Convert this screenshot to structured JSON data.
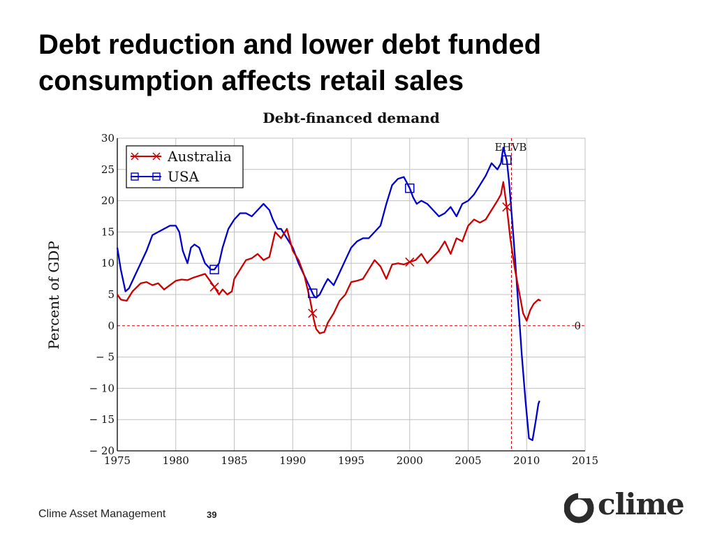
{
  "slide": {
    "title_lines": [
      "Debt reduction and lower debt funded",
      "consumption affects retail sales"
    ],
    "footer": "Clime Asset Management",
    "page_number": "39",
    "logo_text": "clime"
  },
  "colors": {
    "australia": "#cc0000",
    "usa": "#0000cc",
    "zero_line": "#cc0000",
    "grid": "#c0c0c0"
  },
  "chart_data": {
    "type": "line",
    "title": "Debt-financed demand",
    "xlabel": "",
    "ylabel": "Percent of GDP",
    "xlim": [
      1975,
      2015
    ],
    "ylim": [
      -20,
      30
    ],
    "x_ticks": [
      1975,
      1980,
      1985,
      1990,
      1995,
      2000,
      2005,
      2010,
      2015
    ],
    "x_tick_labels": [
      "1975",
      "1980",
      "1985",
      "1990",
      "1995",
      "2000",
      "2005",
      "2010",
      "2015"
    ],
    "y_ticks": [
      -20,
      -15,
      -10,
      -5,
      0,
      5,
      10,
      15,
      20,
      25,
      30
    ],
    "y_tick_labels": [
      "− 20",
      "− 15",
      "− 10",
      "− 5",
      "0",
      "5",
      "10",
      "15",
      "20",
      "25",
      "30"
    ],
    "grid": true,
    "legend": "top-left",
    "annotations": [
      {
        "text": "EHVB",
        "x": 2008.7
      },
      {
        "text": "0",
        "y": 0
      }
    ],
    "series": [
      {
        "name": "Australia",
        "marker": "x",
        "marker_x": [
          1983.3,
          1991.7,
          2000.0,
          2008.3
        ],
        "x": [
          1975,
          1975.3,
          1975.8,
          1976.3,
          1977,
          1977.5,
          1978,
          1978.5,
          1979,
          1979.5,
          1980,
          1980.5,
          1981,
          1981.5,
          1982,
          1982.5,
          1983,
          1983.3,
          1983.7,
          1984,
          1984.4,
          1984.8,
          1985,
          1985.5,
          1986,
          1986.5,
          1987,
          1987.5,
          1988,
          1988.5,
          1989,
          1989.5,
          1990,
          1990.5,
          1991,
          1991.5,
          1991.8,
          1992,
          1992.3,
          1992.7,
          1993,
          1993.5,
          1994,
          1994.5,
          1995,
          1995.5,
          1996,
          1996.5,
          1997,
          1997.5,
          1998,
          1998.5,
          1999,
          1999.5,
          2000,
          2000.5,
          2001,
          2001.5,
          2002,
          2002.5,
          2003,
          2003.5,
          2004,
          2004.5,
          2005,
          2005.5,
          2006,
          2006.5,
          2007,
          2007.5,
          2007.8,
          2008,
          2008.3,
          2008.6,
          2009,
          2009.4,
          2009.7,
          2010,
          2010.3,
          2010.6,
          2011,
          2011.2
        ],
        "values": [
          5.0,
          4.2,
          4.0,
          5.5,
          6.8,
          7.0,
          6.5,
          6.8,
          5.8,
          6.5,
          7.2,
          7.4,
          7.3,
          7.7,
          8.0,
          8.3,
          7.0,
          6.2,
          5.0,
          5.8,
          5.0,
          5.5,
          7.5,
          9.0,
          10.5,
          10.8,
          11.5,
          10.5,
          11.0,
          15.0,
          14.0,
          15.5,
          12.0,
          10.5,
          8.0,
          4.0,
          1.0,
          -0.5,
          -1.2,
          -1.0,
          0.5,
          2.0,
          4.0,
          5.0,
          7.0,
          7.2,
          7.5,
          9.0,
          10.5,
          9.5,
          7.5,
          9.8,
          10.0,
          9.8,
          10.2,
          10.5,
          11.5,
          10.0,
          11.0,
          12.0,
          13.5,
          11.5,
          14.0,
          13.5,
          16.0,
          17.0,
          16.5,
          17.0,
          18.5,
          20.0,
          21.0,
          23.0,
          19.0,
          14.0,
          9.0,
          5.0,
          2.0,
          0.8,
          2.5,
          3.5,
          4.2,
          4.0
        ]
      },
      {
        "name": "USA",
        "marker": "square",
        "marker_x": [
          1983.3,
          1991.7,
          2000.0,
          2008.3
        ],
        "x": [
          1975,
          1975.3,
          1975.7,
          1976,
          1976.5,
          1977,
          1977.5,
          1978,
          1978.5,
          1979,
          1979.5,
          1980,
          1980.3,
          1980.6,
          1981,
          1981.3,
          1981.6,
          1982,
          1982.5,
          1983,
          1983.3,
          1983.7,
          1984,
          1984.5,
          1985,
          1985.5,
          1986,
          1986.5,
          1987,
          1987.5,
          1988,
          1988.3,
          1988.7,
          1989,
          1989.5,
          1990,
          1990.5,
          1991,
          1991.5,
          1991.8,
          1992,
          1992.3,
          1992.7,
          1993,
          1993.5,
          1994,
          1994.5,
          1995,
          1995.5,
          1996,
          1996.5,
          1997,
          1997.5,
          1998,
          1998.5,
          1999,
          1999.5,
          2000,
          2000.3,
          2000.6,
          2001,
          2001.5,
          2002,
          2002.5,
          2003,
          2003.5,
          2004,
          2004.5,
          2005,
          2005.5,
          2006,
          2006.5,
          2007,
          2007.5,
          2007.8,
          2008,
          2008.3,
          2008.5,
          2008.8,
          2009,
          2009.3,
          2009.6,
          2009.9,
          2010.2,
          2010.5,
          2010.8,
          2011,
          2011.1
        ],
        "values": [
          12.5,
          9.0,
          5.5,
          6.0,
          8.0,
          10.0,
          12.0,
          14.5,
          15.0,
          15.5,
          16.0,
          16.0,
          15.0,
          12.0,
          10.0,
          12.5,
          13.0,
          12.5,
          10.0,
          9.0,
          9.0,
          10.0,
          12.5,
          15.5,
          17.0,
          18.0,
          18.0,
          17.5,
          18.5,
          19.5,
          18.5,
          17.0,
          15.5,
          15.5,
          14.0,
          12.5,
          10.0,
          8.0,
          6.0,
          4.8,
          4.5,
          5.0,
          6.5,
          7.5,
          6.5,
          8.5,
          10.5,
          12.5,
          13.5,
          14.0,
          14.0,
          15.0,
          16.0,
          19.5,
          22.5,
          23.5,
          23.8,
          22.0,
          20.5,
          19.5,
          20.0,
          19.5,
          18.5,
          17.5,
          18.0,
          19.0,
          17.5,
          19.5,
          20.0,
          21.0,
          22.5,
          24.0,
          26.0,
          25.0,
          26.0,
          28.5,
          26.5,
          23.0,
          16.0,
          11.0,
          3.0,
          -5.0,
          -12.0,
          -18.0,
          -18.3,
          -15.0,
          -12.5,
          -12.0
        ]
      }
    ]
  }
}
